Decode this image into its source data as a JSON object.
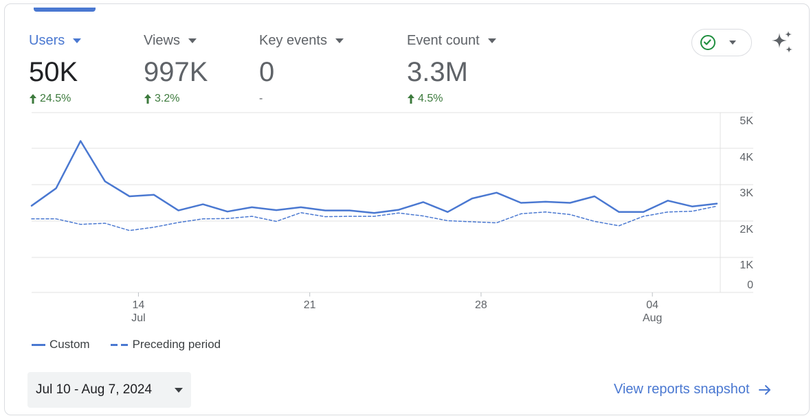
{
  "metrics": [
    {
      "label": "Users",
      "value": "50K",
      "change": "24.5%",
      "direction": "up",
      "active": true
    },
    {
      "label": "Views",
      "value": "997K",
      "change": "3.2%",
      "direction": "up",
      "active": false
    },
    {
      "label": "Key events",
      "value": "0",
      "change": "-",
      "direction": "none",
      "active": false
    },
    {
      "label": "Event count",
      "value": "3.3M",
      "change": "4.5%",
      "direction": "up",
      "active": false
    }
  ],
  "status": {
    "icon": "check-circle-icon"
  },
  "insights": {
    "icon": "sparkle-icon"
  },
  "chart_data": {
    "type": "line",
    "y_tick_labels": [
      "0",
      "1K",
      "2K",
      "3K",
      "4K",
      "5K"
    ],
    "y_tick_values": [
      0,
      1000,
      2000,
      3000,
      4000,
      5000
    ],
    "ylim": [
      0,
      5000
    ],
    "x_tick_labels": [
      {
        "day": "14",
        "month": "Jul"
      },
      {
        "day": "21",
        "month": ""
      },
      {
        "day": "28",
        "month": ""
      },
      {
        "day": "04",
        "month": "Aug"
      }
    ],
    "x": [
      "2024-07-10",
      "2024-07-11",
      "2024-07-12",
      "2024-07-13",
      "2024-07-14",
      "2024-07-15",
      "2024-07-16",
      "2024-07-17",
      "2024-07-18",
      "2024-07-19",
      "2024-07-20",
      "2024-07-21",
      "2024-07-22",
      "2024-07-23",
      "2024-07-24",
      "2024-07-25",
      "2024-07-26",
      "2024-07-27",
      "2024-07-28",
      "2024-07-29",
      "2024-07-30",
      "2024-07-31",
      "2024-08-01",
      "2024-08-02",
      "2024-08-03",
      "2024-08-04",
      "2024-08-05",
      "2024-08-06",
      "2024-08-07"
    ],
    "series": [
      {
        "name": "Custom",
        "style": "solid",
        "values": [
          2420,
          2900,
          4200,
          3090,
          2680,
          2720,
          2290,
          2460,
          2260,
          2380,
          2300,
          2380,
          2290,
          2290,
          2220,
          2310,
          2520,
          2250,
          2620,
          2780,
          2500,
          2530,
          2500,
          2680,
          2250,
          2250,
          2560,
          2400,
          2480
        ]
      },
      {
        "name": "Preceding period",
        "style": "dashed",
        "values": [
          2060,
          2060,
          1910,
          1940,
          1740,
          1830,
          1960,
          2060,
          2070,
          2130,
          1990,
          2230,
          2120,
          2130,
          2130,
          2220,
          2140,
          2010,
          1980,
          1950,
          2200,
          2250,
          2180,
          1990,
          1870,
          2130,
          2250,
          2270,
          2410
        ]
      }
    ],
    "grid": true,
    "legend_position": "bottom-left"
  },
  "date_range": {
    "label": "Jul 10 - Aug 7, 2024"
  },
  "snapshot": {
    "label": "View reports snapshot"
  },
  "colors": {
    "accent": "#4a78d1",
    "positive": "#3c7a3c",
    "gridline": "#e0e0e0"
  }
}
